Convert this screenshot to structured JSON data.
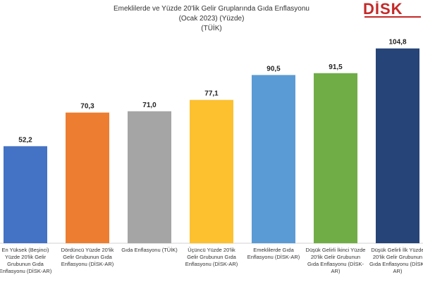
{
  "chart_data": {
    "type": "bar",
    "title_lines": [
      "Emeklilerde ve Yüzde 20'lik Gelir Gruplarında Gıda Enflasyonu",
      "(Ocak 2023) (Yüzde)",
      "(TÜİK)"
    ],
    "categories": [
      [
        "En Yüksek (Beşinci)",
        "Yüzde 20'lik Gelir",
        "Grubunun Gıda",
        "Enflasyonu (DİSK-AR)"
      ],
      [
        "Dördüncü Yüzde 20'lik",
        "Gelir Grubunun Gıda",
        "Enflasyonu (DİSK-AR)"
      ],
      [
        "Gıda Enflasyonu (TÜİK)"
      ],
      [
        "Üçüncü Yüzde 20'lik",
        "Gelir Grubunun Gıda",
        "Enflasyonu (DİSK-AR)"
      ],
      [
        "Emeklilerde Gıda",
        "Enflasyonu (DİSK-AR)"
      ],
      [
        "Düşük Gelirli İkinci Yüzde",
        "20'lik Gelir Grubunun",
        "Gıda Enflasyonu (DİSK-",
        "AR)"
      ],
      [
        "Düşük Gelirli İlk Yüzde",
        "20'lik Gelir Grubunun",
        "Gıda Enflasyonu (DİSK-",
        "AR)"
      ]
    ],
    "values": [
      52.2,
      70.3,
      71.0,
      77.1,
      90.5,
      91.5,
      104.8
    ],
    "value_labels": [
      "52,2",
      "70,3",
      "71,0",
      "77,1",
      "90,5",
      "91,5",
      "104,8"
    ],
    "colors": [
      "#4472c4",
      "#ed7d31",
      "#a5a5a5",
      "#fdc12f",
      "#5b9bd5",
      "#70ad47",
      "#264478"
    ],
    "ylim": [
      0,
      110
    ],
    "grid": false,
    "legend": "none",
    "xlabel": "",
    "ylabel": ""
  },
  "logo": {
    "text": "DİSK AR",
    "color": "#c62828"
  }
}
